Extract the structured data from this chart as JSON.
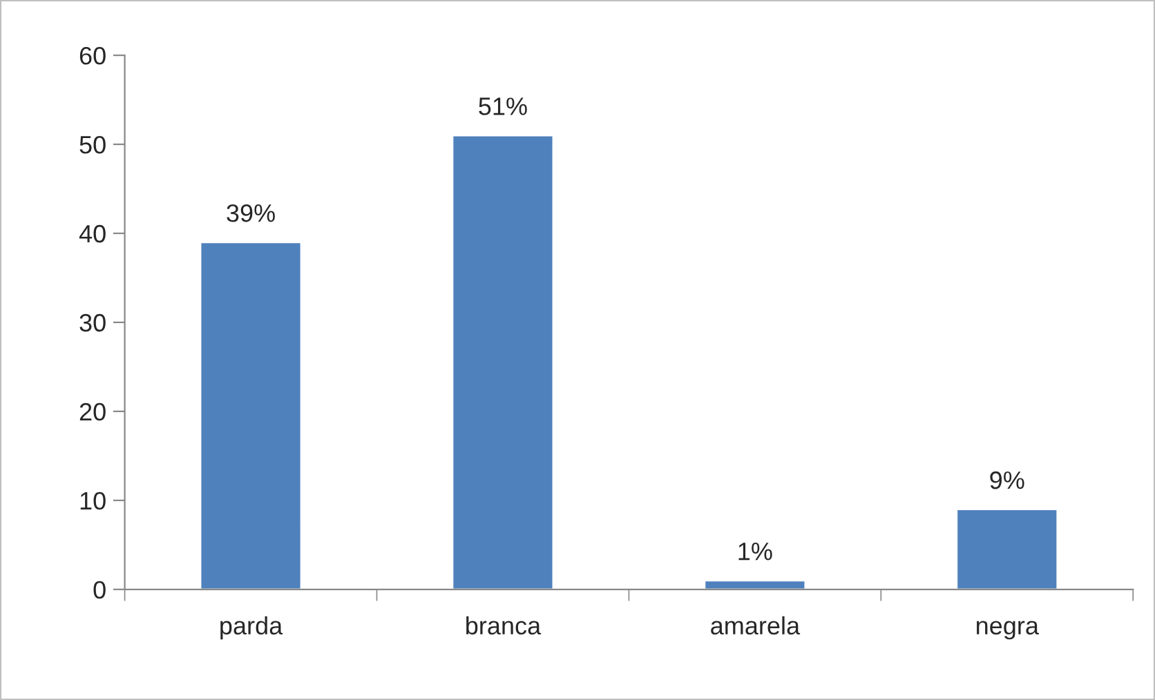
{
  "chart_data": {
    "type": "bar",
    "categories": [
      "parda",
      "branca",
      "amarela",
      "negra"
    ],
    "values": [
      39,
      51,
      1,
      9
    ],
    "value_labels": [
      "39%",
      "51%",
      "1%",
      "9%"
    ],
    "color": "#4f81bd",
    "ylim": [
      0,
      60
    ],
    "yticks": [
      0,
      10,
      20,
      30,
      40,
      50,
      60
    ],
    "grid": false
  }
}
